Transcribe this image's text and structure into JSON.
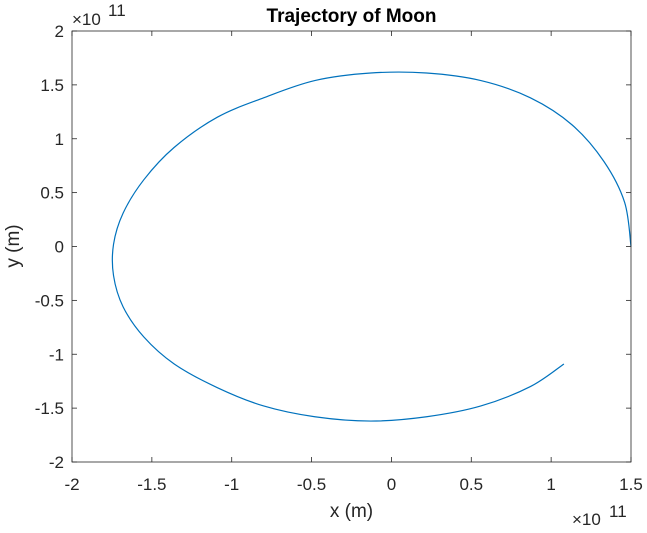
{
  "chart_data": {
    "type": "line",
    "title": "Trajectory of Moon",
    "xlabel": "x (m)",
    "ylabel": "y (m)",
    "x_exponent_label": {
      "base": "×10",
      "exp": "11"
    },
    "y_exponent_label": {
      "base": "×10",
      "exp": "11"
    },
    "scale_factor": 100000000000.0,
    "xlim": [
      -2,
      1.5
    ],
    "ylim": [
      -2,
      2
    ],
    "x_ticks": [
      -2,
      -1.5,
      -1,
      -0.5,
      0,
      0.5,
      1,
      1.5
    ],
    "x_tick_labels": [
      "-2",
      "-1.5",
      "-1",
      "-0.5",
      "0",
      "0.5",
      "1",
      "1.5"
    ],
    "y_ticks": [
      -2,
      -1.5,
      -1,
      -0.5,
      0,
      0.5,
      1,
      1.5,
      2
    ],
    "y_tick_labels": [
      "-2",
      "-1.5",
      "-1",
      "-0.5",
      "0",
      "0.5",
      "1",
      "1.5",
      "2"
    ],
    "grid": false,
    "series": [
      {
        "color": "#0072bd",
        "x": [
          1.5,
          1.46,
          1.33,
          1.13,
          0.87,
          0.56,
          0.22,
          -0.13,
          -0.48,
          -0.8,
          -1.09,
          -1.36,
          -1.55,
          -1.68,
          -1.74,
          -1.74,
          -1.68,
          -1.55,
          -1.36,
          -1.09,
          -0.8,
          -0.48,
          -0.13,
          0.22,
          0.56,
          0.87,
          1.08
        ],
        "y": [
          0.0,
          0.41,
          0.79,
          1.13,
          1.38,
          1.54,
          1.61,
          1.61,
          1.54,
          1.38,
          1.2,
          0.92,
          0.62,
          0.31,
          0.02,
          -0.27,
          -0.56,
          -0.84,
          -1.09,
          -1.31,
          -1.48,
          -1.58,
          -1.62,
          -1.58,
          -1.48,
          -1.3,
          -1.09
        ]
      }
    ]
  }
}
